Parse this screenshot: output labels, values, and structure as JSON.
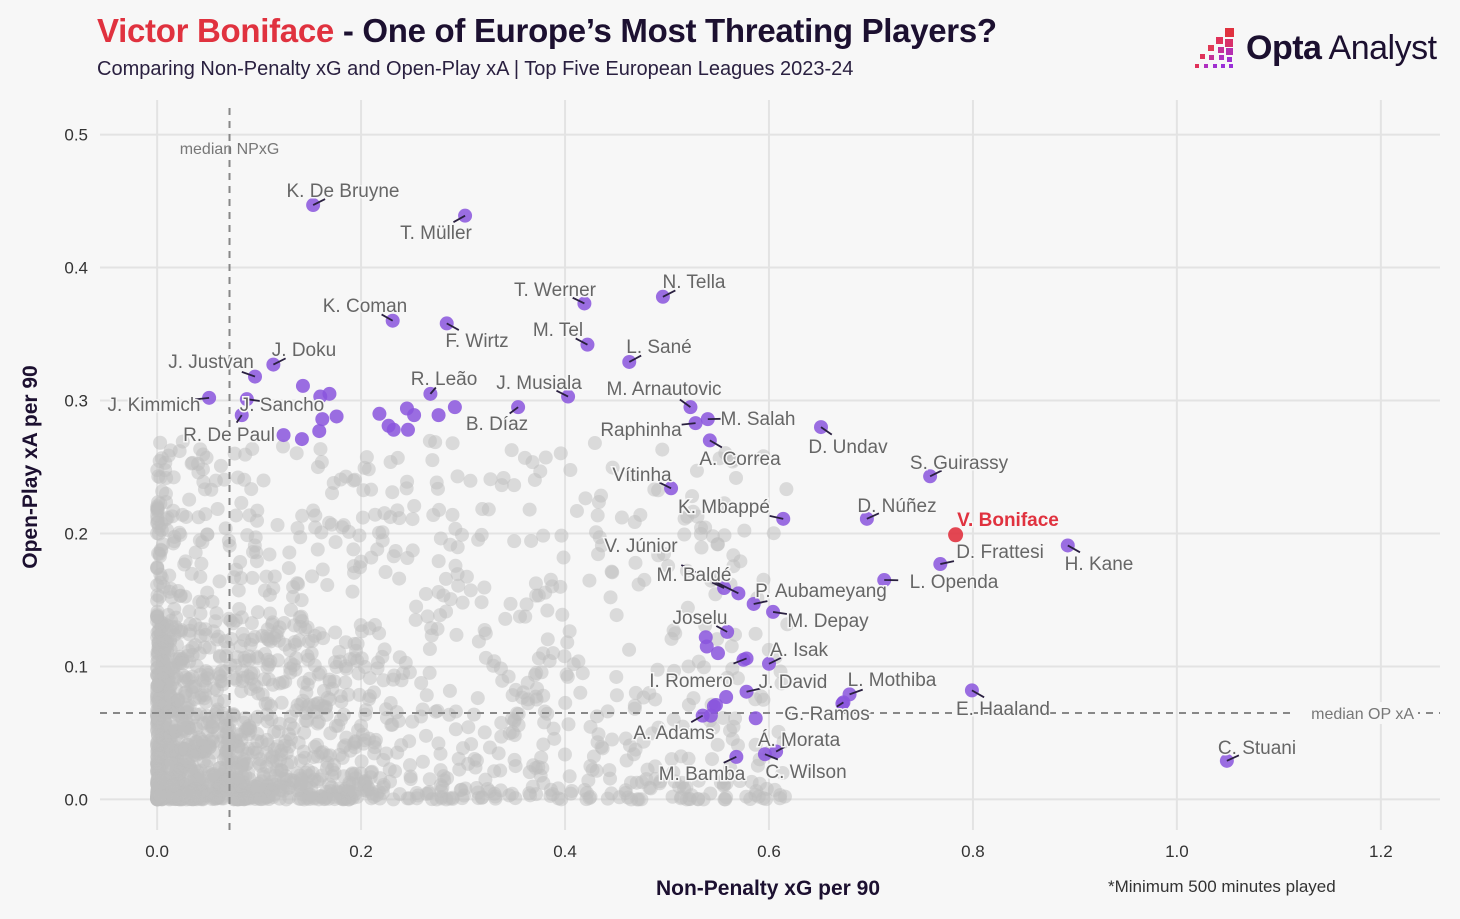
{
  "header": {
    "title_highlight": "Victor Boniface",
    "title_rest": " - One of Europe’s Most Threating Players?",
    "subtitle": "Comparing Non-Penalty xG and Open-Play xA | Top Five European Leagues 2023-24",
    "logo_bold": "Opta",
    "logo_light": " Analyst"
  },
  "footnote": "*Minimum 500 minutes played",
  "colors": {
    "highlight": "#e0323f",
    "featured": "#8a55dd",
    "other": "#bdbdbd",
    "text": "#1c1030"
  },
  "chart_data": {
    "type": "scatter",
    "title": "Victor Boniface - One of Europe’s Most Threating Players?",
    "xlabel": "Non-Penalty xG per 90",
    "ylabel": "Open-Play xA per 90",
    "xlim": [
      -0.056,
      1.258
    ],
    "ylim": [
      -0.023,
      0.526
    ],
    "xticks": [
      "0.0",
      "0.2",
      "0.4",
      "0.6",
      "0.8",
      "1.0",
      "1.2"
    ],
    "yticks": [
      "0.0",
      "0.1",
      "0.2",
      "0.3",
      "0.4",
      "0.5"
    ],
    "grid": true,
    "reference_lines": [
      {
        "axis": "x",
        "value": 0.071,
        "label": "median NPxG"
      },
      {
        "axis": "y",
        "value": 0.065,
        "label": "median OP xA"
      }
    ],
    "highlight": {
      "name": "V. Boniface",
      "x": 0.783,
      "y": 0.199
    },
    "featured_players": [
      {
        "name": "K. De Bruyne",
        "x": 0.153,
        "y": 0.447
      },
      {
        "name": "T. Müller",
        "x": 0.302,
        "y": 0.439
      },
      {
        "name": "K. Coman",
        "x": 0.231,
        "y": 0.36
      },
      {
        "name": "F. Wirtz",
        "x": 0.284,
        "y": 0.358
      },
      {
        "name": "T. Werner",
        "x": 0.419,
        "y": 0.373
      },
      {
        "name": "N. Tella",
        "x": 0.496,
        "y": 0.378
      },
      {
        "name": "M. Tel",
        "x": 0.422,
        "y": 0.342
      },
      {
        "name": "L. Sané",
        "x": 0.463,
        "y": 0.329
      },
      {
        "name": "J. Doku",
        "x": 0.114,
        "y": 0.327
      },
      {
        "name": "J. Justvan",
        "x": 0.096,
        "y": 0.318
      },
      {
        "name": "J. Kimmich",
        "x": 0.051,
        "y": 0.302
      },
      {
        "name": "J. Sancho",
        "x": 0.088,
        "y": 0.301
      },
      {
        "name": "R. De Paul",
        "x": 0.083,
        "y": 0.289
      },
      {
        "name": "R. Leão",
        "x": 0.268,
        "y": 0.305
      },
      {
        "name": "J. Musiala",
        "x": 0.403,
        "y": 0.303
      },
      {
        "name": "B. Díaz",
        "x": 0.354,
        "y": 0.295
      },
      {
        "name": "M. Arnautovic",
        "x": 0.523,
        "y": 0.295
      },
      {
        "name": "M. Salah",
        "x": 0.54,
        "y": 0.286
      },
      {
        "name": "Raphinha",
        "x": 0.528,
        "y": 0.283
      },
      {
        "name": "A. Correa",
        "x": 0.542,
        "y": 0.27
      },
      {
        "name": "D. Undav",
        "x": 0.651,
        "y": 0.28
      },
      {
        "name": "S. Guirassy",
        "x": 0.758,
        "y": 0.243
      },
      {
        "name": "Vítinha",
        "x": 0.504,
        "y": 0.234
      },
      {
        "name": "K. Mbappé",
        "x": 0.614,
        "y": 0.211
      },
      {
        "name": "D. Núñez",
        "x": 0.696,
        "y": 0.211
      },
      {
        "name": "D. Frattesi",
        "x": 0.768,
        "y": 0.177
      },
      {
        "name": "H. Kane",
        "x": 0.893,
        "y": 0.191
      },
      {
        "name": "L. Openda",
        "x": 0.713,
        "y": 0.165
      },
      {
        "name": "V. Júnior",
        "x": 0.57,
        "y": 0.155
      },
      {
        "name": "M. Baldé",
        "x": 0.556,
        "y": 0.159
      },
      {
        "name": "P. Aubameyang",
        "x": 0.585,
        "y": 0.147
      },
      {
        "name": "M. Depay",
        "x": 0.604,
        "y": 0.141
      },
      {
        "name": "Joselu",
        "x": 0.559,
        "y": 0.126
      },
      {
        "name": "A. Isak",
        "x": 0.6,
        "y": 0.102
      },
      {
        "name": "I. Romero",
        "x": 0.578,
        "y": 0.106
      },
      {
        "name": "J. David",
        "x": 0.578,
        "y": 0.081
      },
      {
        "name": "L. Mothiba",
        "x": 0.679,
        "y": 0.079
      },
      {
        "name": "G. Ramos",
        "x": 0.673,
        "y": 0.073
      },
      {
        "name": "E. Haaland",
        "x": 0.799,
        "y": 0.082
      },
      {
        "name": "A. Adams",
        "x": 0.535,
        "y": 0.063
      },
      {
        "name": "Á. Morata",
        "x": 0.607,
        "y": 0.036
      },
      {
        "name": "C. Wilson",
        "x": 0.596,
        "y": 0.034
      },
      {
        "name": "M. Bamba",
        "x": 0.568,
        "y": 0.032
      },
      {
        "name": "C. Stuani",
        "x": 1.049,
        "y": 0.029
      },
      {
        "name": "",
        "x": 0.143,
        "y": 0.311
      },
      {
        "name": "",
        "x": 0.16,
        "y": 0.303
      },
      {
        "name": "",
        "x": 0.169,
        "y": 0.305
      },
      {
        "name": "",
        "x": 0.162,
        "y": 0.286
      },
      {
        "name": "",
        "x": 0.176,
        "y": 0.288
      },
      {
        "name": "",
        "x": 0.124,
        "y": 0.274
      },
      {
        "name": "",
        "x": 0.142,
        "y": 0.271
      },
      {
        "name": "",
        "x": 0.159,
        "y": 0.277
      },
      {
        "name": "",
        "x": 0.218,
        "y": 0.29
      },
      {
        "name": "",
        "x": 0.227,
        "y": 0.281
      },
      {
        "name": "",
        "x": 0.232,
        "y": 0.278
      },
      {
        "name": "",
        "x": 0.246,
        "y": 0.278
      },
      {
        "name": "",
        "x": 0.245,
        "y": 0.294
      },
      {
        "name": "",
        "x": 0.252,
        "y": 0.289
      },
      {
        "name": "",
        "x": 0.276,
        "y": 0.289
      },
      {
        "name": "",
        "x": 0.292,
        "y": 0.295
      },
      {
        "name": "",
        "x": 0.538,
        "y": 0.122
      },
      {
        "name": "",
        "x": 0.539,
        "y": 0.115
      },
      {
        "name": "",
        "x": 0.55,
        "y": 0.11
      },
      {
        "name": "",
        "x": 0.575,
        "y": 0.105
      },
      {
        "name": "",
        "x": 0.558,
        "y": 0.077
      },
      {
        "name": "",
        "x": 0.548,
        "y": 0.071
      },
      {
        "name": "",
        "x": 0.546,
        "y": 0.07
      },
      {
        "name": "",
        "x": 0.543,
        "y": 0.063
      },
      {
        "name": "",
        "x": 0.587,
        "y": 0.061
      },
      {
        "name": "",
        "x": 0.672,
        "y": 0.072
      }
    ],
    "other_players_count": 1900
  }
}
